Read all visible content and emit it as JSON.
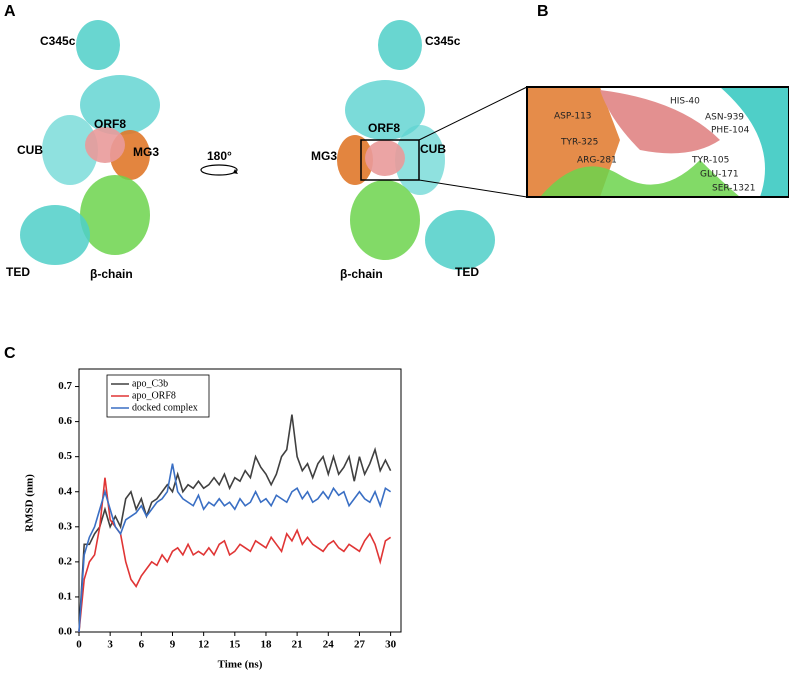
{
  "panels": [
    "A",
    "B",
    "C"
  ],
  "panel_a": {
    "left": [
      "C345c",
      "CUB",
      "ORF8",
      "MG3",
      "TED",
      "β-chain"
    ],
    "rotation": "180°",
    "right": [
      "C345c",
      "ORF8",
      "CUB",
      "MG3",
      "TED",
      "β-chain"
    ]
  },
  "panel_b": {
    "residues": [
      "ASP-113",
      "TYR-325",
      "ARG-281",
      "HIS-40",
      "ASN-939",
      "PHE-104",
      "TYR-105",
      "GLU-171",
      "SER-1321"
    ]
  },
  "chart_data": {
    "type": "line",
    "x_label": "Time (ns)",
    "y_label": "RMSD (nm)",
    "x": [
      0,
      0.5,
      1,
      1.5,
      2,
      2.5,
      3,
      3.5,
      4,
      4.5,
      5,
      5.5,
      6,
      6.5,
      7,
      7.5,
      8,
      8.5,
      9,
      9.5,
      10,
      10.5,
      11,
      11.5,
      12,
      12.5,
      13,
      13.5,
      14,
      14.5,
      15,
      15.5,
      16,
      16.5,
      17,
      17.5,
      18,
      18.5,
      19,
      19.5,
      20,
      20.5,
      21,
      21.5,
      22,
      22.5,
      23,
      23.5,
      24,
      24.5,
      25,
      25.5,
      26,
      26.5,
      27,
      27.5,
      28,
      28.5,
      29,
      29.5,
      30
    ],
    "series": [
      {
        "name": "apo_C3b",
        "color": "#404040",
        "values": [
          0,
          0.25,
          0.25,
          0.28,
          0.3,
          0.35,
          0.3,
          0.33,
          0.3,
          0.38,
          0.4,
          0.35,
          0.38,
          0.33,
          0.37,
          0.38,
          0.4,
          0.42,
          0.4,
          0.45,
          0.4,
          0.42,
          0.41,
          0.43,
          0.41,
          0.42,
          0.44,
          0.42,
          0.45,
          0.41,
          0.44,
          0.43,
          0.46,
          0.44,
          0.5,
          0.47,
          0.45,
          0.42,
          0.45,
          0.5,
          0.52,
          0.62,
          0.5,
          0.46,
          0.48,
          0.44,
          0.48,
          0.5,
          0.45,
          0.5,
          0.45,
          0.47,
          0.5,
          0.43,
          0.5,
          0.45,
          0.48,
          0.52,
          0.46,
          0.49,
          0.46
        ]
      },
      {
        "name": "apo_ORF8",
        "color": "#e03535",
        "values": [
          0,
          0.15,
          0.2,
          0.22,
          0.3,
          0.44,
          0.32,
          0.3,
          0.28,
          0.2,
          0.15,
          0.13,
          0.16,
          0.18,
          0.2,
          0.19,
          0.22,
          0.2,
          0.23,
          0.24,
          0.22,
          0.25,
          0.22,
          0.23,
          0.22,
          0.24,
          0.22,
          0.25,
          0.26,
          0.22,
          0.23,
          0.25,
          0.24,
          0.23,
          0.26,
          0.25,
          0.24,
          0.27,
          0.25,
          0.23,
          0.28,
          0.26,
          0.29,
          0.25,
          0.27,
          0.25,
          0.24,
          0.23,
          0.25,
          0.26,
          0.24,
          0.23,
          0.25,
          0.24,
          0.23,
          0.26,
          0.28,
          0.25,
          0.2,
          0.26,
          0.27
        ]
      },
      {
        "name": "docked complex",
        "color": "#3a6fc4",
        "values": [
          0,
          0.22,
          0.27,
          0.3,
          0.35,
          0.4,
          0.35,
          0.3,
          0.28,
          0.32,
          0.33,
          0.34,
          0.36,
          0.33,
          0.35,
          0.37,
          0.38,
          0.4,
          0.48,
          0.4,
          0.38,
          0.37,
          0.36,
          0.39,
          0.35,
          0.37,
          0.36,
          0.38,
          0.36,
          0.37,
          0.35,
          0.38,
          0.36,
          0.37,
          0.4,
          0.37,
          0.38,
          0.36,
          0.39,
          0.38,
          0.37,
          0.4,
          0.41,
          0.38,
          0.4,
          0.37,
          0.38,
          0.4,
          0.38,
          0.41,
          0.39,
          0.4,
          0.36,
          0.38,
          0.4,
          0.38,
          0.37,
          0.4,
          0.36,
          0.41,
          0.4
        ]
      }
    ],
    "xlim": [
      0,
      31
    ],
    "xticks": [
      0,
      3,
      6,
      9,
      12,
      15,
      18,
      21,
      24,
      27,
      30
    ],
    "ylim": [
      0,
      0.75
    ],
    "yticks": [
      {
        "value": 0,
        "label": "0.0"
      },
      0.1,
      0.2,
      0.3,
      0.4,
      0.5,
      0.6,
      0.7
    ],
    "legend": "upper left"
  }
}
